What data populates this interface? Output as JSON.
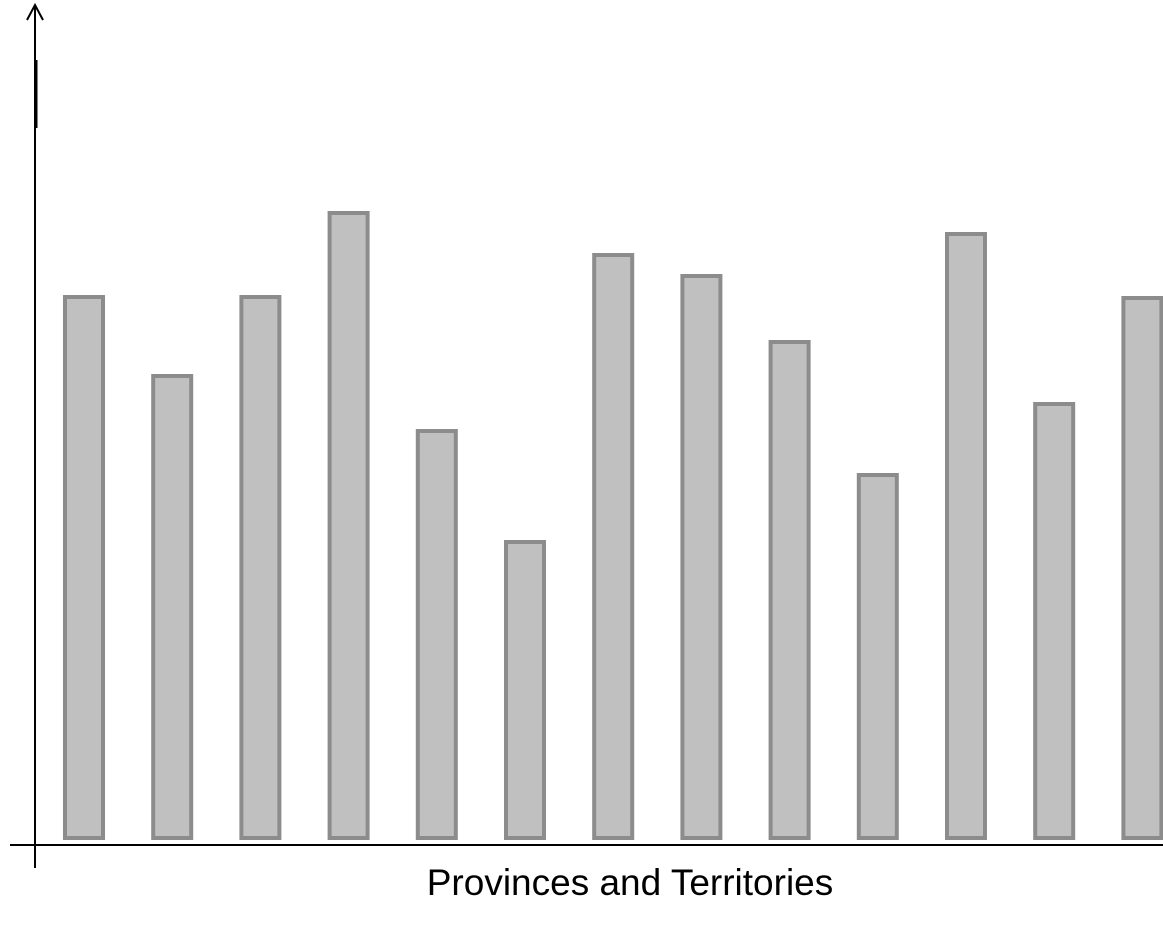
{
  "chart_data": {
    "type": "bar",
    "x_label": "Provinces and Territories",
    "values": [
      541,
      462,
      541,
      625,
      407,
      296,
      583,
      562,
      496,
      363,
      604,
      434,
      540
    ],
    "color": "#c0c0c0",
    "edge_color": "#8c8c8c",
    "ylim": [
      0,
      838
    ]
  }
}
